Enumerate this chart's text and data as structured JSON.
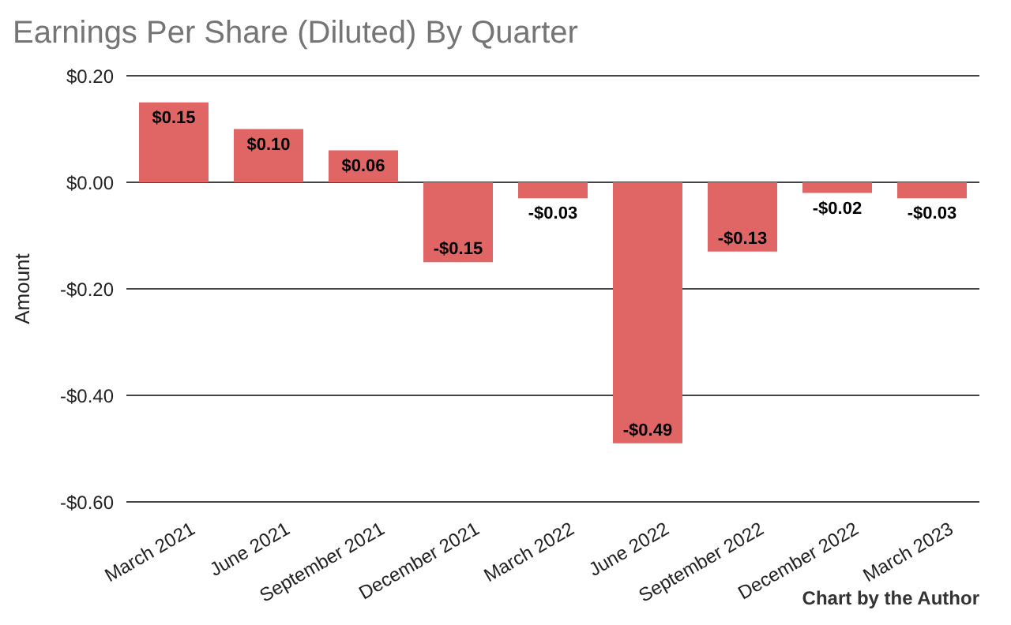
{
  "chart_data": {
    "type": "bar",
    "title": "Earnings Per Share (Diluted) By Quarter",
    "ylabel": "Amount",
    "categories": [
      "March 2021",
      "June 2021",
      "September 2021",
      "December 2021",
      "March 2022",
      "June 2022",
      "September 2022",
      "December 2022",
      "March 2023"
    ],
    "values": [
      0.15,
      0.1,
      0.06,
      -0.15,
      -0.03,
      -0.49,
      -0.13,
      -0.02,
      -0.03
    ],
    "value_labels": [
      "$0.15",
      "$0.10",
      "$0.06",
      "-$0.15",
      "-$0.03",
      "-$0.49",
      "-$0.13",
      "-$0.02",
      "-$0.03"
    ],
    "color": "#e06666",
    "ylim": [
      -0.6,
      0.2
    ],
    "yticks": [
      {
        "value": -0.6,
        "label": "-$0.60"
      },
      {
        "value": -0.4,
        "label": "-$0.40"
      },
      {
        "value": -0.2,
        "label": "-$0.20"
      },
      {
        "value": 0,
        "label": "$0.00"
      },
      {
        "value": 0.2,
        "label": "$0.20"
      }
    ],
    "grid": "y",
    "annotations": [
      "Chart by the Author"
    ]
  }
}
